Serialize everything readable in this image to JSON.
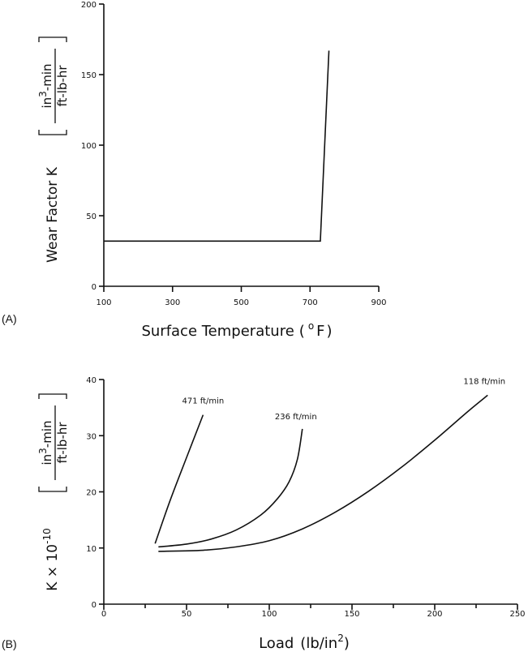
{
  "chart_data": [
    {
      "type": "line",
      "panel_label": "(A)",
      "xlabel": "Surface Temperature",
      "xlabel_unit": "F",
      "xlabel_unit_prefix": "o",
      "ylabel": "Wear Factor  K",
      "ylabel_unit_numerator": "in",
      "ylabel_unit_numerator_sup": "3",
      "ylabel_unit_numerator_rest": "-min",
      "ylabel_unit_denominator": "ft-lb-hr",
      "xlim": [
        100,
        900
      ],
      "ylim": [
        0,
        200
      ],
      "xticks": [
        100,
        300,
        500,
        700,
        900
      ],
      "yticks": [
        0,
        50,
        100,
        150,
        200
      ],
      "series": [
        {
          "x": [
            100,
            730,
            755
          ],
          "y": [
            32,
            32,
            167
          ]
        }
      ]
    },
    {
      "type": "line",
      "panel_label": "(B)",
      "xlabel": "Load",
      "xlabel_unit": "lb/in",
      "xlabel_unit_sup": "2",
      "ylabel": "K × 10",
      "ylabel_exp": "-10",
      "ylabel_unit_numerator": "in",
      "ylabel_unit_numerator_sup": "3",
      "ylabel_unit_numerator_rest": "-min",
      "ylabel_unit_denominator": "ft-lb-hr",
      "xlim": [
        0,
        250
      ],
      "ylim": [
        0,
        40
      ],
      "xticks": [
        0,
        50,
        100,
        150,
        200,
        250
      ],
      "yticks": [
        0,
        10,
        20,
        30,
        40
      ],
      "series": [
        {
          "name": "471 ft/min",
          "x": [
            31,
            40,
            50,
            60
          ],
          "y": [
            10.8,
            18.4,
            26.1,
            33.7
          ]
        },
        {
          "name": "236 ft/min",
          "x": [
            33,
            50,
            65,
            80,
            95,
            105,
            112,
            117,
            120
          ],
          "y": [
            10.2,
            10.7,
            11.6,
            13.2,
            15.9,
            18.8,
            21.8,
            25.8,
            31.2
          ]
        },
        {
          "name": "118 ft/min",
          "x": [
            33,
            60,
            80,
            100,
            120,
            140,
            160,
            180,
            200,
            220,
            232
          ],
          "y": [
            9.4,
            9.6,
            10.2,
            11.3,
            13.4,
            16.4,
            20.1,
            24.4,
            29.2,
            34.3,
            37.2
          ]
        }
      ]
    }
  ]
}
